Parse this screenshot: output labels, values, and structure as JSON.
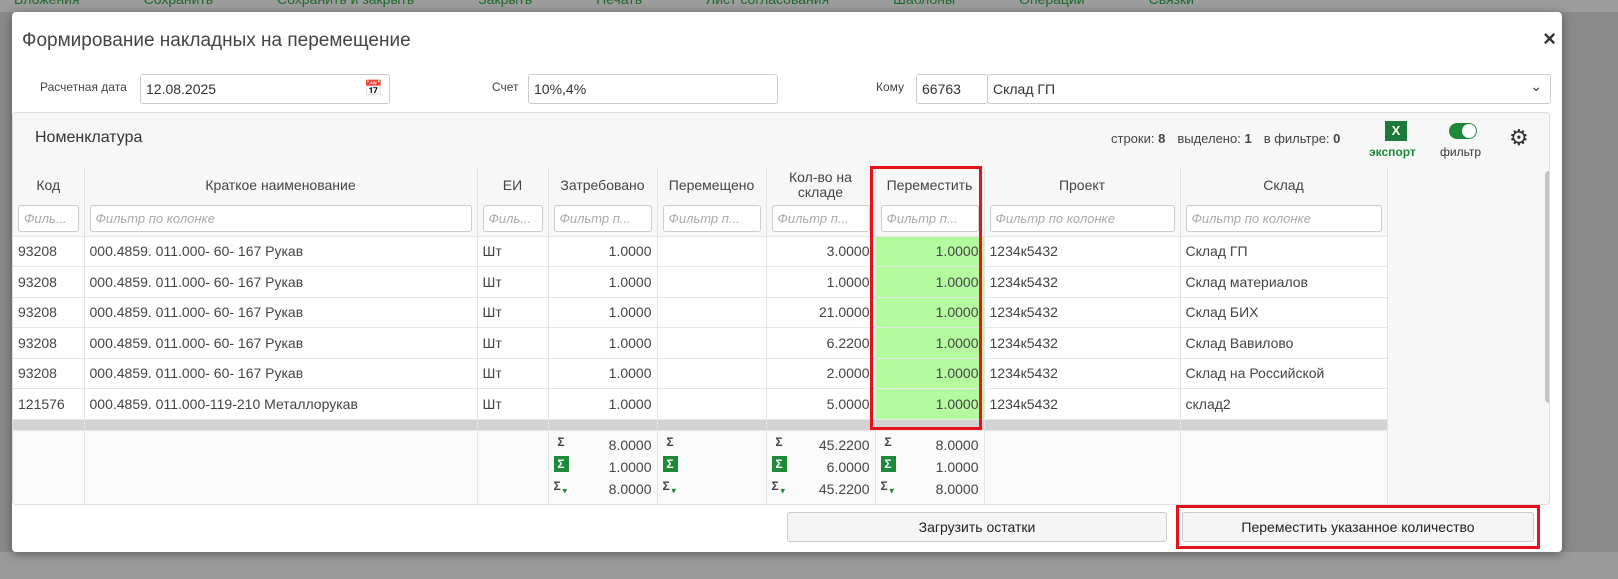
{
  "topbar": {
    "items": [
      "Вложения",
      "Сохранить",
      "Сохранить и закрыть",
      "Закрыть",
      "Печать",
      "Лист согласования",
      "Шаблоны",
      "Операции",
      "Связки"
    ]
  },
  "modal": {
    "title": "Формирование накладных на перемещение",
    "close_icon": "×"
  },
  "form": {
    "date_label": "Расчетная дата",
    "date_value": "12.08.2025",
    "account_label": "Счет",
    "account_value": "10%,4%",
    "to_label": "Кому",
    "to_code": "66763",
    "to_name": "Склад ГП"
  },
  "grid": {
    "title": "Номенклатура",
    "rows_label": "строки:",
    "rows_value": "8",
    "selected_label": "выделено:",
    "selected_value": "1",
    "filtered_label": "в фильтре:",
    "filtered_value": "0",
    "export_label": "экспорт",
    "export_icon": "X",
    "filter_label": "фильтр",
    "filter_on": true,
    "columns": [
      "Код",
      "Краткое наименование",
      "ЕИ",
      "Затребовано",
      "Перемещено",
      "Кол-во на складе",
      "Переместить",
      "Проект",
      "Склад"
    ],
    "filter_placeholders": [
      "Филь...",
      "Фильтр по колонке",
      "Филь...",
      "Фильтр п...",
      "Фильтр п...",
      "Фильтр п...",
      "Фильтр п...",
      "Фильтр по колонке",
      "Фильтр по колонке"
    ],
    "rows": [
      [
        "93208",
        "000.4859. 011.000- 60- 167 Рукав",
        "Шт",
        "1.0000",
        "",
        "3.0000",
        "1.0000",
        "1234к5432",
        "Склад ГП"
      ],
      [
        "93208",
        "000.4859. 011.000- 60- 167 Рукав",
        "Шт",
        "1.0000",
        "",
        "1.0000",
        "1.0000",
        "1234к5432",
        "Склад материалов"
      ],
      [
        "93208",
        "000.4859. 011.000- 60- 167 Рукав",
        "Шт",
        "1.0000",
        "",
        "21.0000",
        "1.0000",
        "1234к5432",
        "Склад БИХ"
      ],
      [
        "93208",
        "000.4859. 011.000- 60- 167 Рукав",
        "Шт",
        "1.0000",
        "",
        "6.2200",
        "1.0000",
        "1234к5432",
        "Склад Вавилово"
      ],
      [
        "93208",
        "000.4859. 011.000- 60- 167 Рукав",
        "Шт",
        "1.0000",
        "",
        "2.0000",
        "1.0000",
        "1234к5432",
        "Склад на Российской"
      ],
      [
        "121576",
        "000.4859. 011.000-119-210 Металлорукав",
        "Шт",
        "1.0000",
        "",
        "5.0000",
        "1.0000",
        "1234к5432",
        "склад2"
      ]
    ],
    "totals": {
      "requested": {
        "sum": "8.0000",
        "selected": "1.0000",
        "filtered": "8.0000"
      },
      "moved": {
        "sum": "",
        "selected": "",
        "filtered": ""
      },
      "stock": {
        "sum": "45.2200",
        "selected": "6.0000",
        "filtered": "45.2200"
      },
      "to_move": {
        "sum": "8.0000",
        "selected": "1.0000",
        "filtered": "8.0000"
      }
    }
  },
  "buttons": {
    "load": "Загрузить остатки",
    "move": "Переместить указанное количество"
  },
  "colors": {
    "highlight": "#b4fa9e",
    "accent": "#1d8a3a",
    "annotation": "#e8101b"
  }
}
